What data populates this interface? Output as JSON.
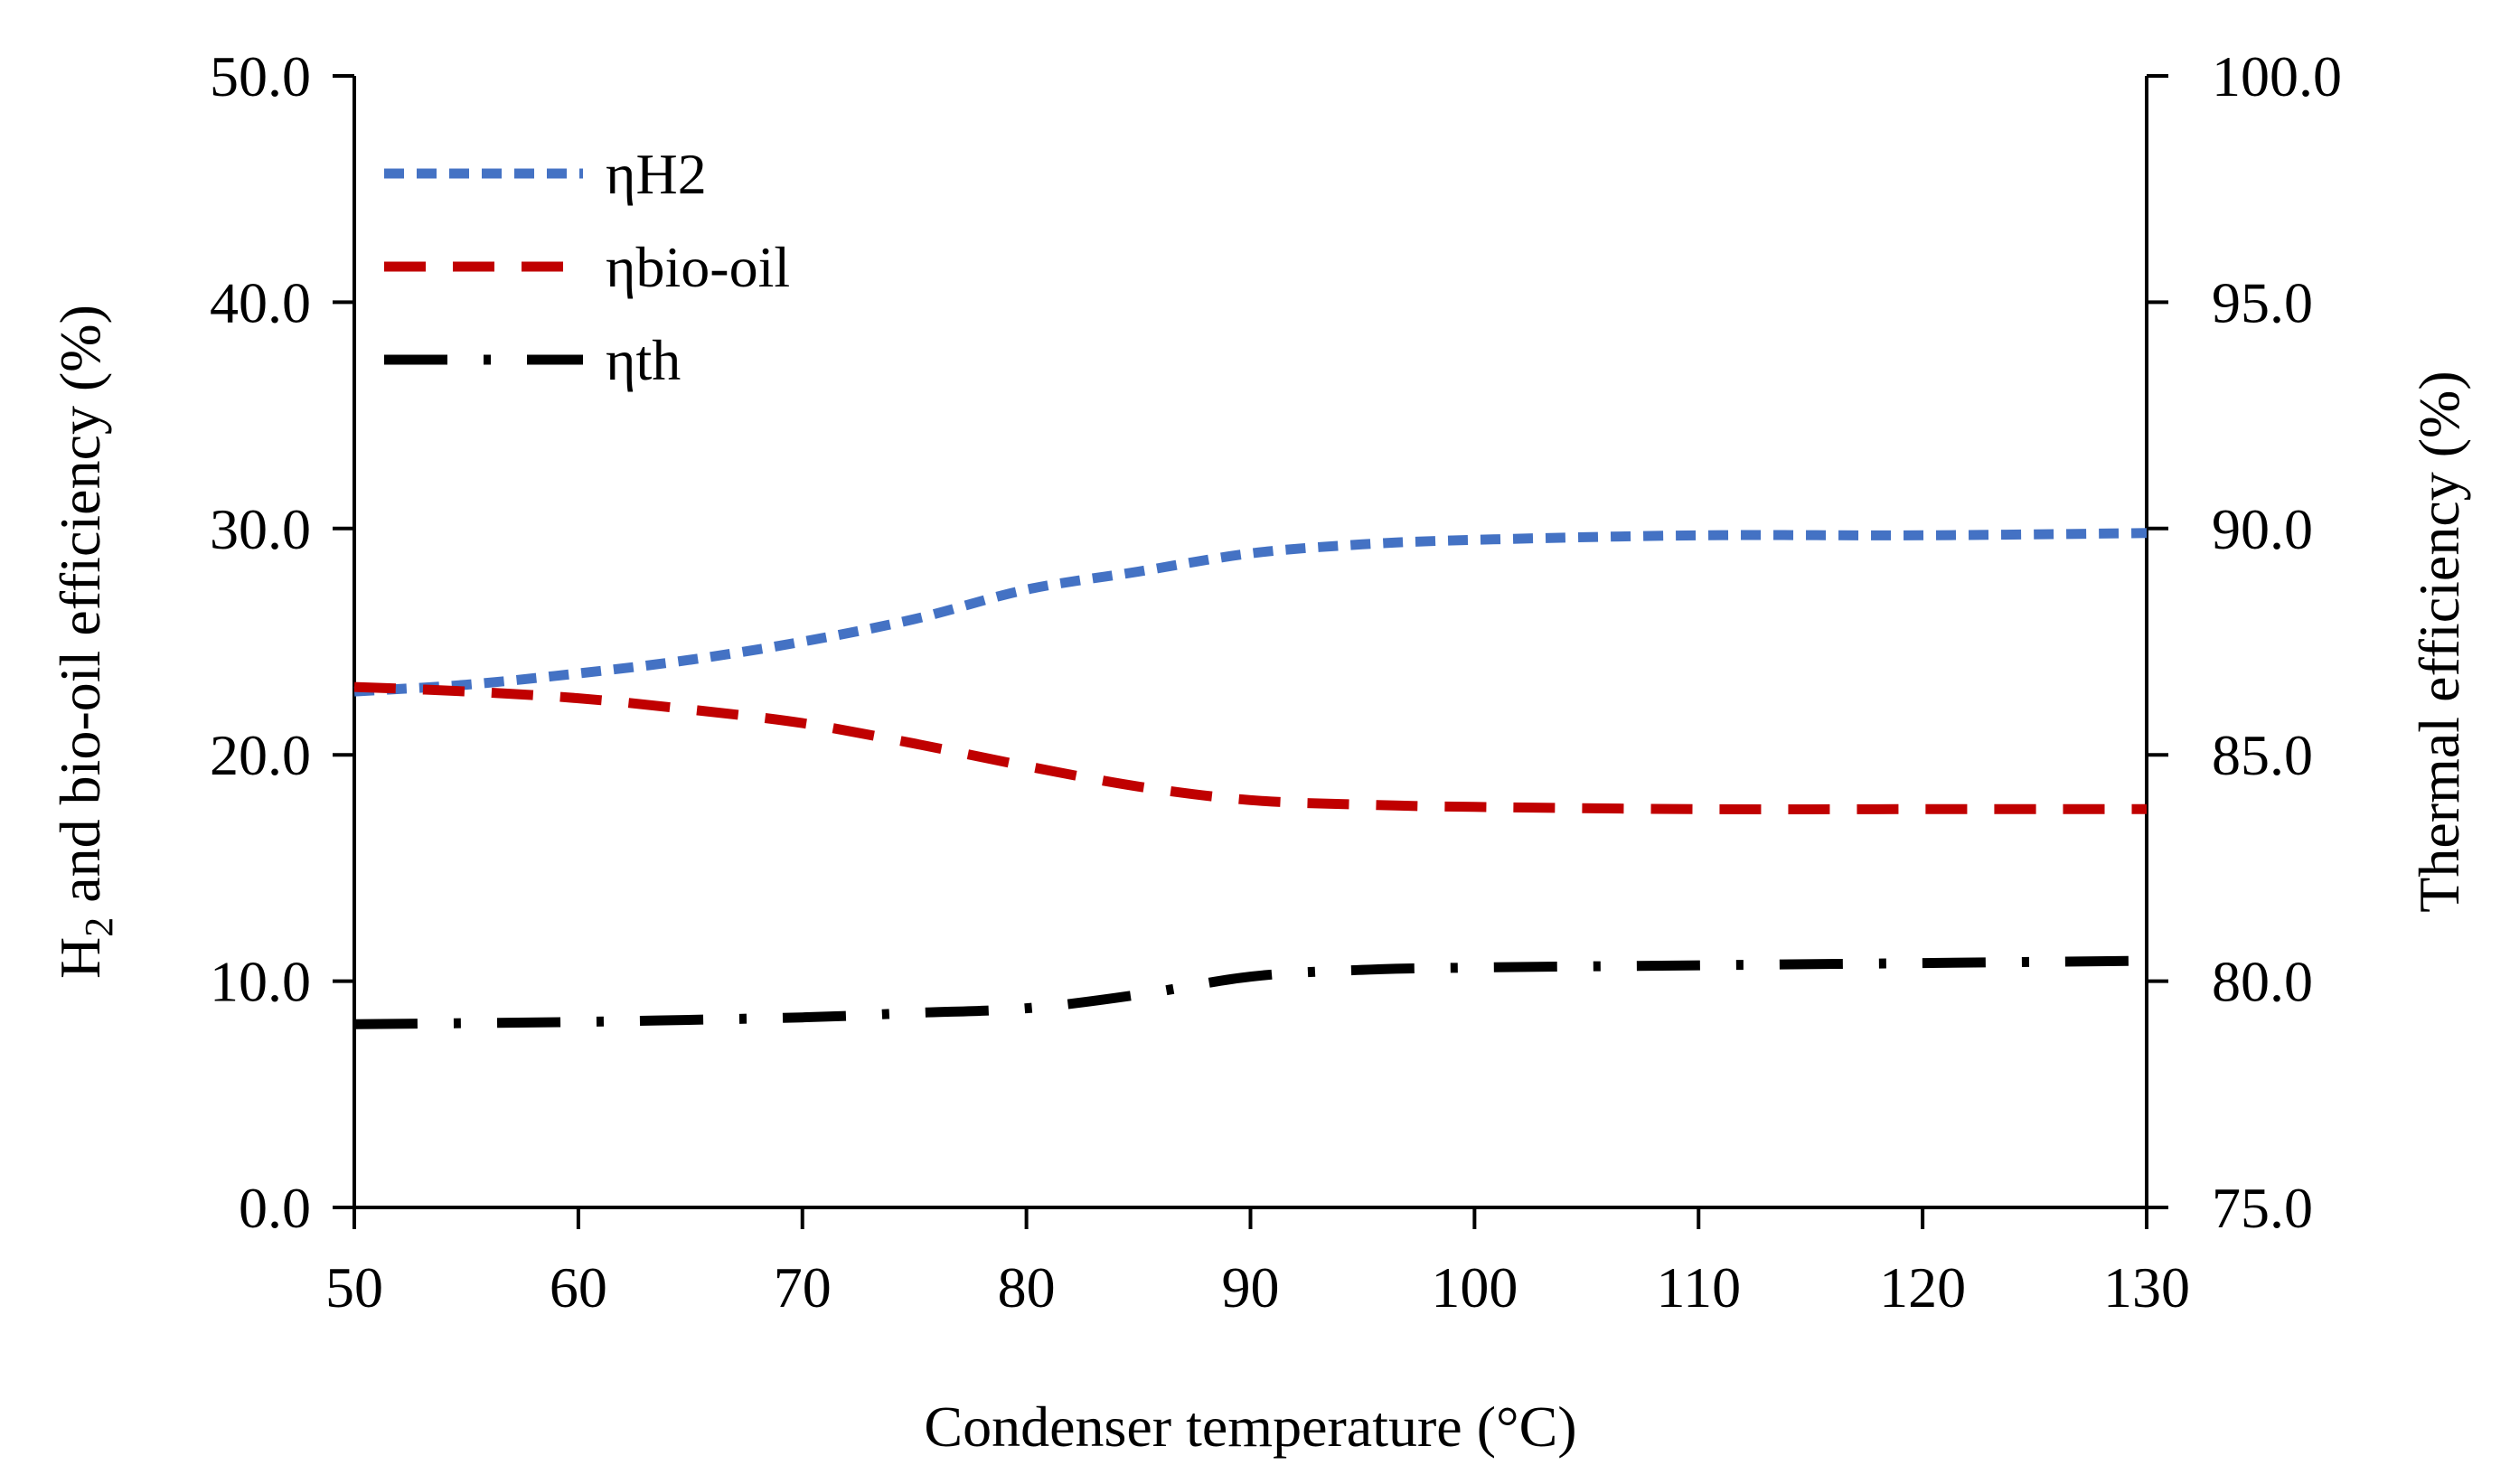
{
  "chart_data": {
    "type": "line",
    "title": "",
    "xlabel": "Condenser temperature (°C)",
    "ylabel_left": {
      "prefix": "H",
      "subscript": "2",
      "suffix": " and bio-oil efficiency (%)"
    },
    "ylabel_right": "Thermal efficiency (%)",
    "xlim": [
      50,
      130
    ],
    "ylim_left": [
      0,
      50
    ],
    "ylim_right": [
      75,
      100
    ],
    "x_ticks": [
      50,
      60,
      70,
      80,
      90,
      100,
      110,
      120,
      130
    ],
    "x_tick_labels": [
      "50",
      "60",
      "70",
      "80",
      "90",
      "100",
      "110",
      "120",
      "130"
    ],
    "y_left_ticks": [
      0,
      10,
      20,
      30,
      40,
      50
    ],
    "y_left_tick_labels": [
      "0.0",
      "10.0",
      "20.0",
      "30.0",
      "40.0",
      "50.0"
    ],
    "y_right_ticks": [
      75,
      80,
      85,
      90,
      95,
      100
    ],
    "y_right_tick_labels": [
      "75.0",
      "80.0",
      "85.0",
      "90.0",
      "95.0",
      "100.0"
    ],
    "grid": false,
    "legend_position": "top-left",
    "series": [
      {
        "name": "ηH2",
        "axis": "left",
        "color": "#4472C4",
        "dash": "short-dash",
        "x": [
          50,
          55,
          60,
          65,
          70,
          75,
          80,
          85,
          90,
          95,
          100,
          110,
          120,
          130
        ],
        "y": [
          22.8,
          23.1,
          23.6,
          24.2,
          25.0,
          26.0,
          27.3,
          28.1,
          28.9,
          29.3,
          29.5,
          29.7,
          29.7,
          29.8
        ]
      },
      {
        "name": "ηbio-oil",
        "axis": "left",
        "color": "#C00000",
        "dash": "dash",
        "x": [
          50,
          55,
          60,
          65,
          70,
          75,
          80,
          85,
          90,
          95,
          100,
          110,
          120,
          130
        ],
        "y": [
          23.0,
          22.8,
          22.5,
          22.0,
          21.4,
          20.5,
          19.5,
          18.6,
          18.0,
          17.8,
          17.7,
          17.6,
          17.6,
          17.6
        ]
      },
      {
        "name": "ηth",
        "axis": "right",
        "color": "#000000",
        "dash": "long-dash-dot",
        "x": [
          50,
          60,
          70,
          75,
          80,
          85,
          90,
          95,
          100,
          110,
          120,
          130
        ],
        "y": [
          79.05,
          79.1,
          79.2,
          79.3,
          79.4,
          79.7,
          80.1,
          80.25,
          80.3,
          80.35,
          80.4,
          80.45
        ]
      }
    ]
  }
}
